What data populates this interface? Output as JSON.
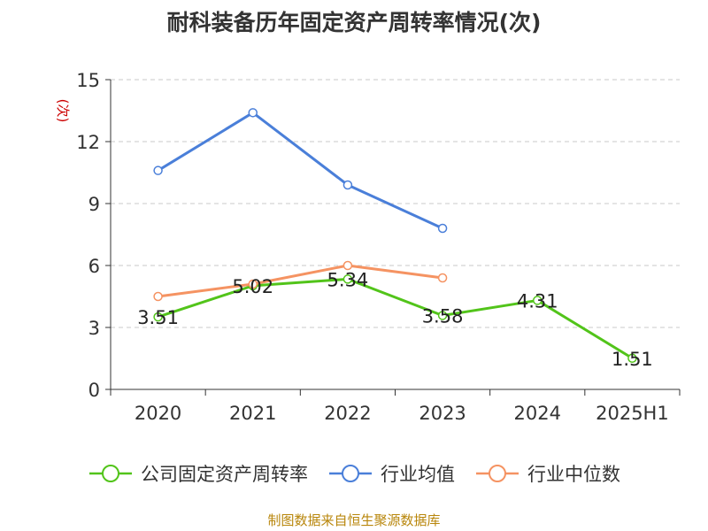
{
  "chart_data": {
    "type": "line",
    "title": "耐科装备历年固定资产周转率情况(次)",
    "ylabel": "(次)",
    "xlabel": "",
    "categories": [
      "2020",
      "2021",
      "2022",
      "2023",
      "2024",
      "2025H1"
    ],
    "ylim": [
      0,
      15
    ],
    "yticks": [
      0,
      3,
      6,
      9,
      12,
      15
    ],
    "grid": true,
    "legend_position": "bottom",
    "series": [
      {
        "name": "公司固定资产周转率",
        "color": "#52c41a",
        "labels": true,
        "values": [
          3.51,
          5.02,
          5.34,
          3.58,
          4.31,
          1.51
        ]
      },
      {
        "name": "行业均值",
        "color": "#4a7fd9",
        "labels": false,
        "values": [
          10.6,
          13.4,
          9.9,
          7.8,
          null,
          null
        ]
      },
      {
        "name": "行业中位数",
        "color": "#f59362",
        "labels": false,
        "values": [
          4.5,
          5.1,
          6.0,
          5.4,
          null,
          null
        ]
      }
    ]
  },
  "source_note": "制图数据来自恒生聚源数据库"
}
